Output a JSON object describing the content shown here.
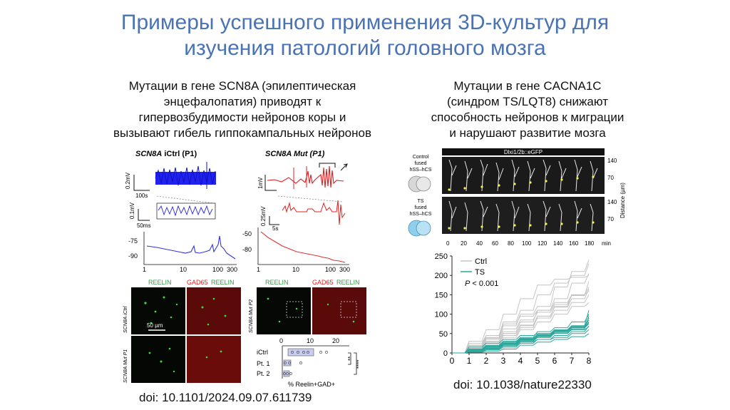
{
  "slide": {
    "title_line1": "Примеры успешного применения 3D-культур для",
    "title_line2": "изучения патологий головного мозга"
  },
  "left": {
    "heading_lines": [
      "Мутации в гене SCN8A (эпилептическая",
      "энцефалопатия) приводят к",
      "гипервозбудимости нейронов коры и",
      "вызывают гибель гиппокампальных нейронов"
    ],
    "doi": "doi: 10.1101/2024.09.07.611739",
    "figure": {
      "panel_ictrl_gene": "SCN8A",
      "panel_ictrl_label": " iCtrl (P1)",
      "panel_mut_gene": "SCN8A",
      "panel_mut_label": " Mut (P1)",
      "scale_02mv": "0.2mV",
      "scale_100s": "100s",
      "scale_01mv": "0.1mV",
      "scale_50ms": "50ms",
      "scale_1mv": "1mV",
      "scale_025mv": "0.25mV",
      "scale_5s": "5s",
      "y_tick_m75": "-75",
      "y_tick_m90": "-90",
      "y_tick_m50": "-50",
      "y_tick_m80": "-80",
      "x_ticks": [
        "1",
        "10",
        "100",
        "300"
      ],
      "reelin": "REELIN",
      "gad65": "GAD65",
      "row_ictrl": "SCN8A iCtrl",
      "row_mut": "SCN8A Mut P1",
      "row_mut_p2": "SCN8A Mut P2",
      "scale_50um": "50 µm",
      "dot_ticks": [
        "0",
        "10",
        "20"
      ],
      "dot_rows": [
        "iCtrl",
        "Pt. 1",
        "Pt. 2"
      ],
      "sig_1": "**",
      "sig_2": "****",
      "dot_xlabel": "% Reelin+GAD+"
    }
  },
  "right": {
    "heading_lines": [
      "Мутации в гене CACNA1C",
      "(синдром TS/LQT8) снижают",
      "способность нейронов к миграции",
      "и нарушают развитие мозга"
    ],
    "doi": "doi: 10.1038/nature22330",
    "figure": {
      "strip_title": "Dlxi1/2b::eGFP",
      "control_label": [
        "Control",
        "fused",
        "hSS–hCS"
      ],
      "ts_label": [
        "TS",
        "fused",
        "hSS–hCS"
      ],
      "distance_ticks": [
        "140",
        "70",
        "140",
        "70"
      ],
      "distance_label": "Distance (µm)",
      "time_ticks": [
        "0",
        "20",
        "40",
        "60",
        "80",
        "100",
        "120",
        "140",
        "160",
        "180"
      ],
      "time_unit": "min"
    }
  },
  "chart_data": {
    "type": "line",
    "title": "",
    "xlabel": "",
    "ylabel": "",
    "xlim": [
      0,
      8
    ],
    "ylim": [
      0,
      250
    ],
    "x_ticks": [
      0,
      1,
      2,
      3,
      4,
      5,
      6,
      7,
      8
    ],
    "y_ticks": [
      0,
      50,
      100,
      150,
      200,
      250
    ],
    "legend": [
      "Ctrl",
      "TS"
    ],
    "legend_position": "top-left",
    "annotation": "P < 0.001",
    "colors": {
      "Ctrl": "#c4c4c4",
      "TS": "#2aa79b"
    },
    "series": [
      {
        "name": "Ctrl",
        "x": [
          0,
          1,
          2,
          3,
          4,
          5,
          6,
          7,
          8
        ],
        "values": [
          0,
          20,
          40,
          70,
          100,
          120,
          170,
          210,
          240
        ]
      },
      {
        "name": "Ctrl",
        "x": [
          0,
          1,
          2,
          3,
          4,
          5,
          6,
          7,
          8
        ],
        "values": [
          0,
          25,
          45,
          80,
          110,
          150,
          180,
          200,
          230
        ]
      },
      {
        "name": "Ctrl",
        "x": [
          0,
          1,
          2,
          3,
          4,
          5,
          6,
          7,
          8
        ],
        "values": [
          0,
          15,
          35,
          55,
          80,
          110,
          140,
          180,
          205
        ]
      },
      {
        "name": "Ctrl",
        "x": [
          0,
          1,
          2,
          3,
          4,
          5,
          6,
          7,
          8
        ],
        "values": [
          0,
          30,
          60,
          100,
          140,
          175,
          190,
          195,
          200
        ]
      },
      {
        "name": "Ctrl",
        "x": [
          0,
          1,
          2,
          3,
          4,
          5,
          6,
          7,
          8
        ],
        "values": [
          0,
          10,
          25,
          45,
          65,
          95,
          120,
          150,
          170
        ]
      },
      {
        "name": "Ctrl",
        "x": [
          0,
          1,
          2,
          3,
          4,
          5,
          6,
          7,
          8
        ],
        "values": [
          0,
          20,
          45,
          75,
          95,
          110,
          130,
          150,
          160
        ]
      },
      {
        "name": "Ctrl",
        "x": [
          0,
          1,
          2,
          3,
          4,
          5,
          6,
          7,
          8
        ],
        "values": [
          0,
          15,
          30,
          50,
          70,
          90,
          110,
          130,
          150
        ]
      },
      {
        "name": "Ctrl",
        "x": [
          0,
          1,
          2,
          3,
          4,
          5,
          6,
          7,
          8
        ],
        "values": [
          0,
          10,
          20,
          40,
          60,
          80,
          100,
          120,
          130
        ]
      },
      {
        "name": "Ctrl",
        "x": [
          0,
          1,
          2,
          3,
          4,
          5,
          6,
          7,
          8
        ],
        "values": [
          0,
          12,
          28,
          50,
          72,
          95,
          118,
          140,
          165
        ]
      },
      {
        "name": "Ctrl",
        "x": [
          0,
          1,
          2,
          3,
          4,
          5,
          6,
          7,
          8
        ],
        "values": [
          0,
          18,
          38,
          62,
          85,
          105,
          125,
          148,
          185
        ]
      },
      {
        "name": "TS",
        "x": [
          0,
          1,
          2,
          3,
          4,
          5,
          6,
          7,
          8
        ],
        "values": [
          0,
          5,
          10,
          20,
          30,
          40,
          55,
          70,
          90
        ]
      },
      {
        "name": "TS",
        "x": [
          0,
          1,
          2,
          3,
          4,
          5,
          6,
          7,
          8
        ],
        "values": [
          0,
          10,
          20,
          30,
          40,
          55,
          65,
          80,
          100
        ]
      },
      {
        "name": "TS",
        "x": [
          0,
          1,
          2,
          3,
          4,
          5,
          6,
          7,
          8
        ],
        "values": [
          0,
          5,
          15,
          25,
          35,
          45,
          55,
          65,
          75
        ]
      },
      {
        "name": "TS",
        "x": [
          0,
          1,
          2,
          3,
          4,
          5,
          6,
          7,
          8
        ],
        "values": [
          0,
          8,
          18,
          28,
          38,
          48,
          58,
          68,
          85
        ]
      },
      {
        "name": "TS",
        "x": [
          0,
          1,
          2,
          3,
          4,
          5,
          6,
          7,
          8
        ],
        "values": [
          0,
          3,
          8,
          15,
          25,
          35,
          40,
          50,
          60
        ]
      },
      {
        "name": "TS",
        "x": [
          0,
          1,
          2,
          3,
          4,
          5,
          6,
          7,
          8
        ],
        "values": [
          0,
          5,
          10,
          18,
          28,
          35,
          45,
          55,
          70
        ]
      },
      {
        "name": "TS",
        "x": [
          0,
          1,
          2,
          3,
          4,
          5,
          6,
          7,
          8
        ],
        "values": [
          0,
          10,
          18,
          25,
          35,
          45,
          55,
          65,
          80
        ]
      },
      {
        "name": "TS",
        "x": [
          0,
          1,
          2,
          3,
          4,
          5,
          6,
          7,
          8
        ],
        "values": [
          0,
          5,
          12,
          22,
          32,
          42,
          52,
          62,
          95
        ]
      },
      {
        "name": "TS",
        "x": [
          0,
          1,
          2,
          3,
          4,
          5,
          6,
          7,
          8
        ],
        "values": [
          0,
          2,
          5,
          10,
          20,
          28,
          35,
          42,
          50
        ]
      },
      {
        "name": "TS",
        "x": [
          0,
          1,
          2,
          3,
          4,
          5,
          6,
          7,
          8
        ],
        "values": [
          0,
          7,
          14,
          24,
          34,
          44,
          50,
          60,
          68
        ]
      },
      {
        "name": "TS",
        "x": [
          0,
          1,
          2,
          3,
          4,
          5,
          6,
          7,
          8
        ],
        "values": [
          0,
          15,
          25,
          35,
          45,
          50,
          60,
          70,
          110
        ]
      },
      {
        "name": "TS",
        "x": [
          0,
          1,
          2,
          3,
          4,
          5,
          6,
          7,
          8
        ],
        "values": [
          0,
          8,
          16,
          26,
          36,
          46,
          56,
          66,
          78
        ]
      }
    ]
  }
}
